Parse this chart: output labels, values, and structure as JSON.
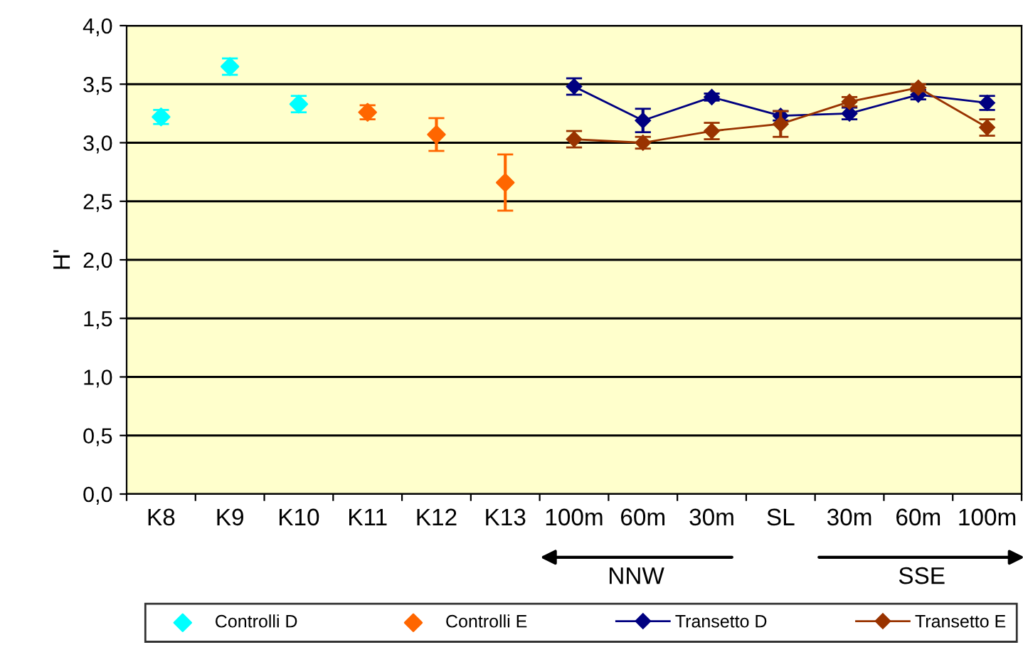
{
  "chart_data": {
    "type": "line",
    "ylabel": "H'",
    "categories": [
      "K8",
      "K9",
      "K10",
      "K11",
      "K12",
      "K13",
      "100m",
      "60m",
      "30m",
      "SL",
      "30m",
      "60m",
      "100m"
    ],
    "ylim": [
      0,
      4
    ],
    "yticks": [
      {
        "value": 0,
        "label": "0,0"
      },
      {
        "value": 0.5,
        "label": "0,5"
      },
      {
        "value": 1,
        "label": "1,0"
      },
      {
        "value": 1.5,
        "label": "1,5"
      },
      {
        "value": 2,
        "label": "2,0"
      },
      {
        "value": 2.5,
        "label": "2,5"
      },
      {
        "value": 3,
        "label": "3,0"
      },
      {
        "value": 3.5,
        "label": "3,5"
      },
      {
        "value": 4,
        "label": "4,0"
      }
    ],
    "grid": "y",
    "legend": "bottom",
    "marker": "diamond",
    "annotations": [
      "NNW",
      "SSE"
    ],
    "series": [
      {
        "name": "Controlli D",
        "type": "scatter",
        "color": "#00ffff",
        "values": [
          3.22,
          3.65,
          3.33,
          null,
          null,
          null,
          null,
          null,
          null,
          null,
          null,
          null,
          null
        ],
        "errors": [
          0.06,
          0.07,
          0.07,
          null,
          null,
          null,
          null,
          null,
          null,
          null,
          null,
          null,
          null
        ]
      },
      {
        "name": "Controlli E",
        "type": "scatter",
        "color": "#ff6600",
        "values": [
          null,
          null,
          null,
          3.26,
          3.07,
          2.66,
          null,
          null,
          null,
          null,
          null,
          null,
          null
        ],
        "errors": [
          null,
          null,
          null,
          0.06,
          0.14,
          0.24,
          null,
          null,
          null,
          null,
          null,
          null,
          null
        ]
      },
      {
        "name": "Transetto D",
        "color": "#000080",
        "values": [
          null,
          null,
          null,
          null,
          null,
          null,
          3.48,
          3.19,
          3.39,
          3.23,
          3.25,
          3.41,
          3.34
        ],
        "errors": [
          null,
          null,
          null,
          null,
          null,
          null,
          0.07,
          0.1,
          0.03,
          0.04,
          0.05,
          0.04,
          0.06
        ]
      },
      {
        "name": "Transetto E",
        "color": "#993300",
        "values": [
          null,
          null,
          null,
          null,
          null,
          null,
          3.03,
          3.0,
          3.1,
          3.16,
          3.35,
          3.47,
          3.13
        ],
        "errors": [
          null,
          null,
          null,
          null,
          null,
          null,
          0.07,
          0.05,
          0.07,
          0.11,
          0.04,
          0.03,
          0.07
        ]
      }
    ]
  }
}
